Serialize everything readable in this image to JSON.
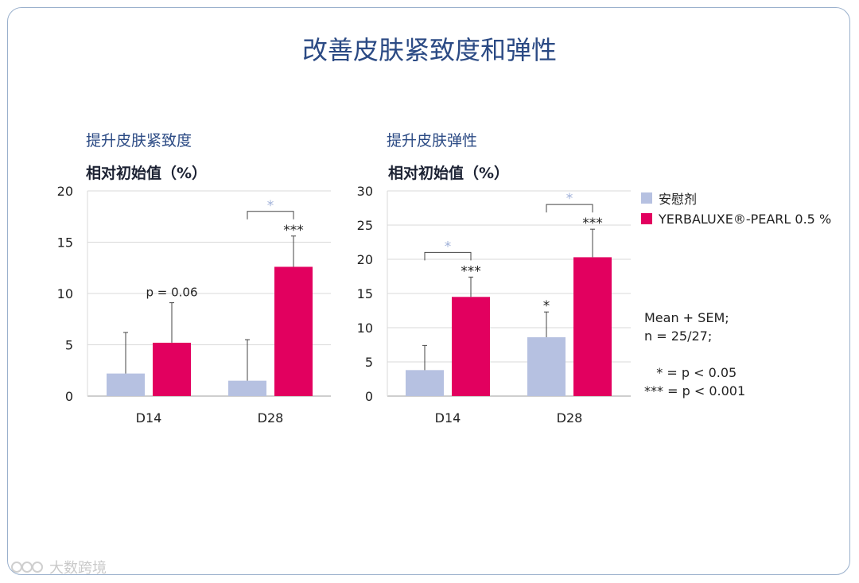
{
  "page": {
    "title": "改善皮肤紧致度和弹性",
    "watermark": "大数跨境"
  },
  "colors": {
    "placebo": "#b6c1e1",
    "active": "#e2005f",
    "title": "#2b4a84",
    "sig_light": "#9fb0d8",
    "frame": "#9ab0cc"
  },
  "legend": {
    "items": [
      {
        "label": "安慰剂",
        "color": "#b6c1e1"
      },
      {
        "label": "YERBALUXE®-PEARL 0.5 %",
        "color": "#e2005f"
      }
    ]
  },
  "stats_note": {
    "lines": [
      "Mean + SEM;",
      "n = 25/27;",
      "",
      "   * = p < 0.05",
      "*** = p < 0.001"
    ]
  },
  "chart_data": [
    {
      "type": "bar",
      "subtitle": "提升皮肤紧致度",
      "ylabel": "相对初始值（%）",
      "ylim": [
        0,
        20
      ],
      "yticks": [
        0,
        5,
        10,
        15,
        20
      ],
      "categories": [
        "D14",
        "D28"
      ],
      "series": [
        {
          "name": "安慰剂",
          "values": [
            2.2,
            1.5
          ],
          "errors": [
            4.0,
            4.0
          ]
        },
        {
          "name": "YERBALUXE®-PEARL 0.5 %",
          "values": [
            5.2,
            12.6
          ],
          "errors": [
            3.9,
            3.0
          ]
        }
      ],
      "annotations": [
        {
          "category": "D14",
          "series": 1,
          "text": "p = 0.06"
        },
        {
          "category": "D28",
          "series": 1,
          "text": "***"
        }
      ],
      "brackets": [
        {
          "category": "D28",
          "text": "*"
        }
      ],
      "grid": true
    },
    {
      "type": "bar",
      "subtitle": "提升皮肤弹性",
      "ylabel": "相对初始值（%）",
      "ylim": [
        0,
        30
      ],
      "yticks": [
        0,
        5,
        10,
        15,
        20,
        25,
        30
      ],
      "categories": [
        "D14",
        "D28"
      ],
      "series": [
        {
          "name": "安慰剂",
          "values": [
            3.8,
            8.6
          ],
          "errors": [
            3.6,
            3.7
          ]
        },
        {
          "name": "YERBALUXE®-PEARL 0.5 %",
          "values": [
            14.5,
            20.3
          ],
          "errors": [
            2.9,
            4.1
          ]
        }
      ],
      "annotations": [
        {
          "category": "D14",
          "series": 1,
          "text": "***"
        },
        {
          "category": "D28",
          "series": 0,
          "text": "*"
        },
        {
          "category": "D28",
          "series": 1,
          "text": "***"
        }
      ],
      "brackets": [
        {
          "category": "D14",
          "text": "*"
        },
        {
          "category": "D28",
          "text": "*"
        }
      ],
      "grid": true
    }
  ]
}
